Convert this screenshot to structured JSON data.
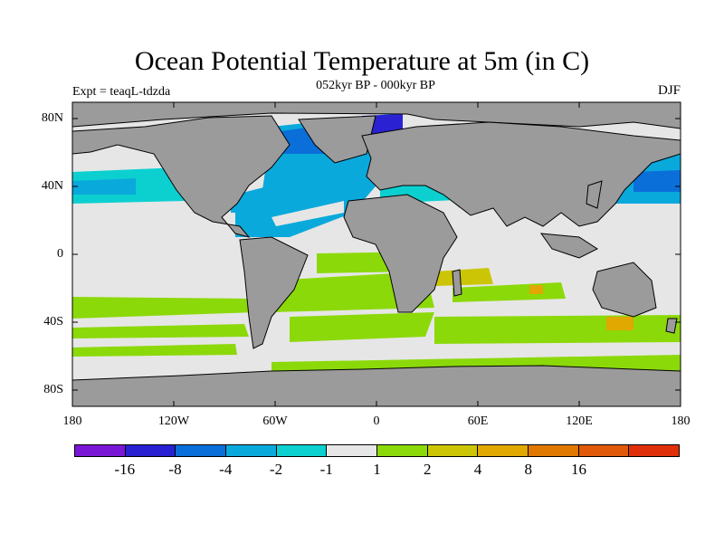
{
  "header": {
    "title": "Ocean Potential Temperature at 5m (in C)",
    "subtitle": "052kyr BP - 000kyr BP",
    "experiment": "Expt = teaqL-tdzda",
    "season": "DJF"
  },
  "map": {
    "lat_ticks": [
      "80N",
      "40N",
      "0",
      "40S",
      "80S"
    ],
    "lon_ticks": [
      "180",
      "120W",
      "60W",
      "0",
      "60E",
      "120E",
      "180"
    ],
    "land_color": "#9b9b9b",
    "background_color": "#e6e6e6"
  },
  "colorbar": {
    "colors": [
      "#7a17d6",
      "#2a22d2",
      "#0a6fd8",
      "#0aa9dc",
      "#0cd0d0",
      "#e6e6e6",
      "#8cd90a",
      "#ccc505",
      "#e0a800",
      "#e07800",
      "#e05a0a",
      "#e0300a"
    ],
    "labels": [
      "-16",
      "-8",
      "-4",
      "-2",
      "-1",
      "1",
      "2",
      "4",
      "8",
      "16"
    ]
  }
}
